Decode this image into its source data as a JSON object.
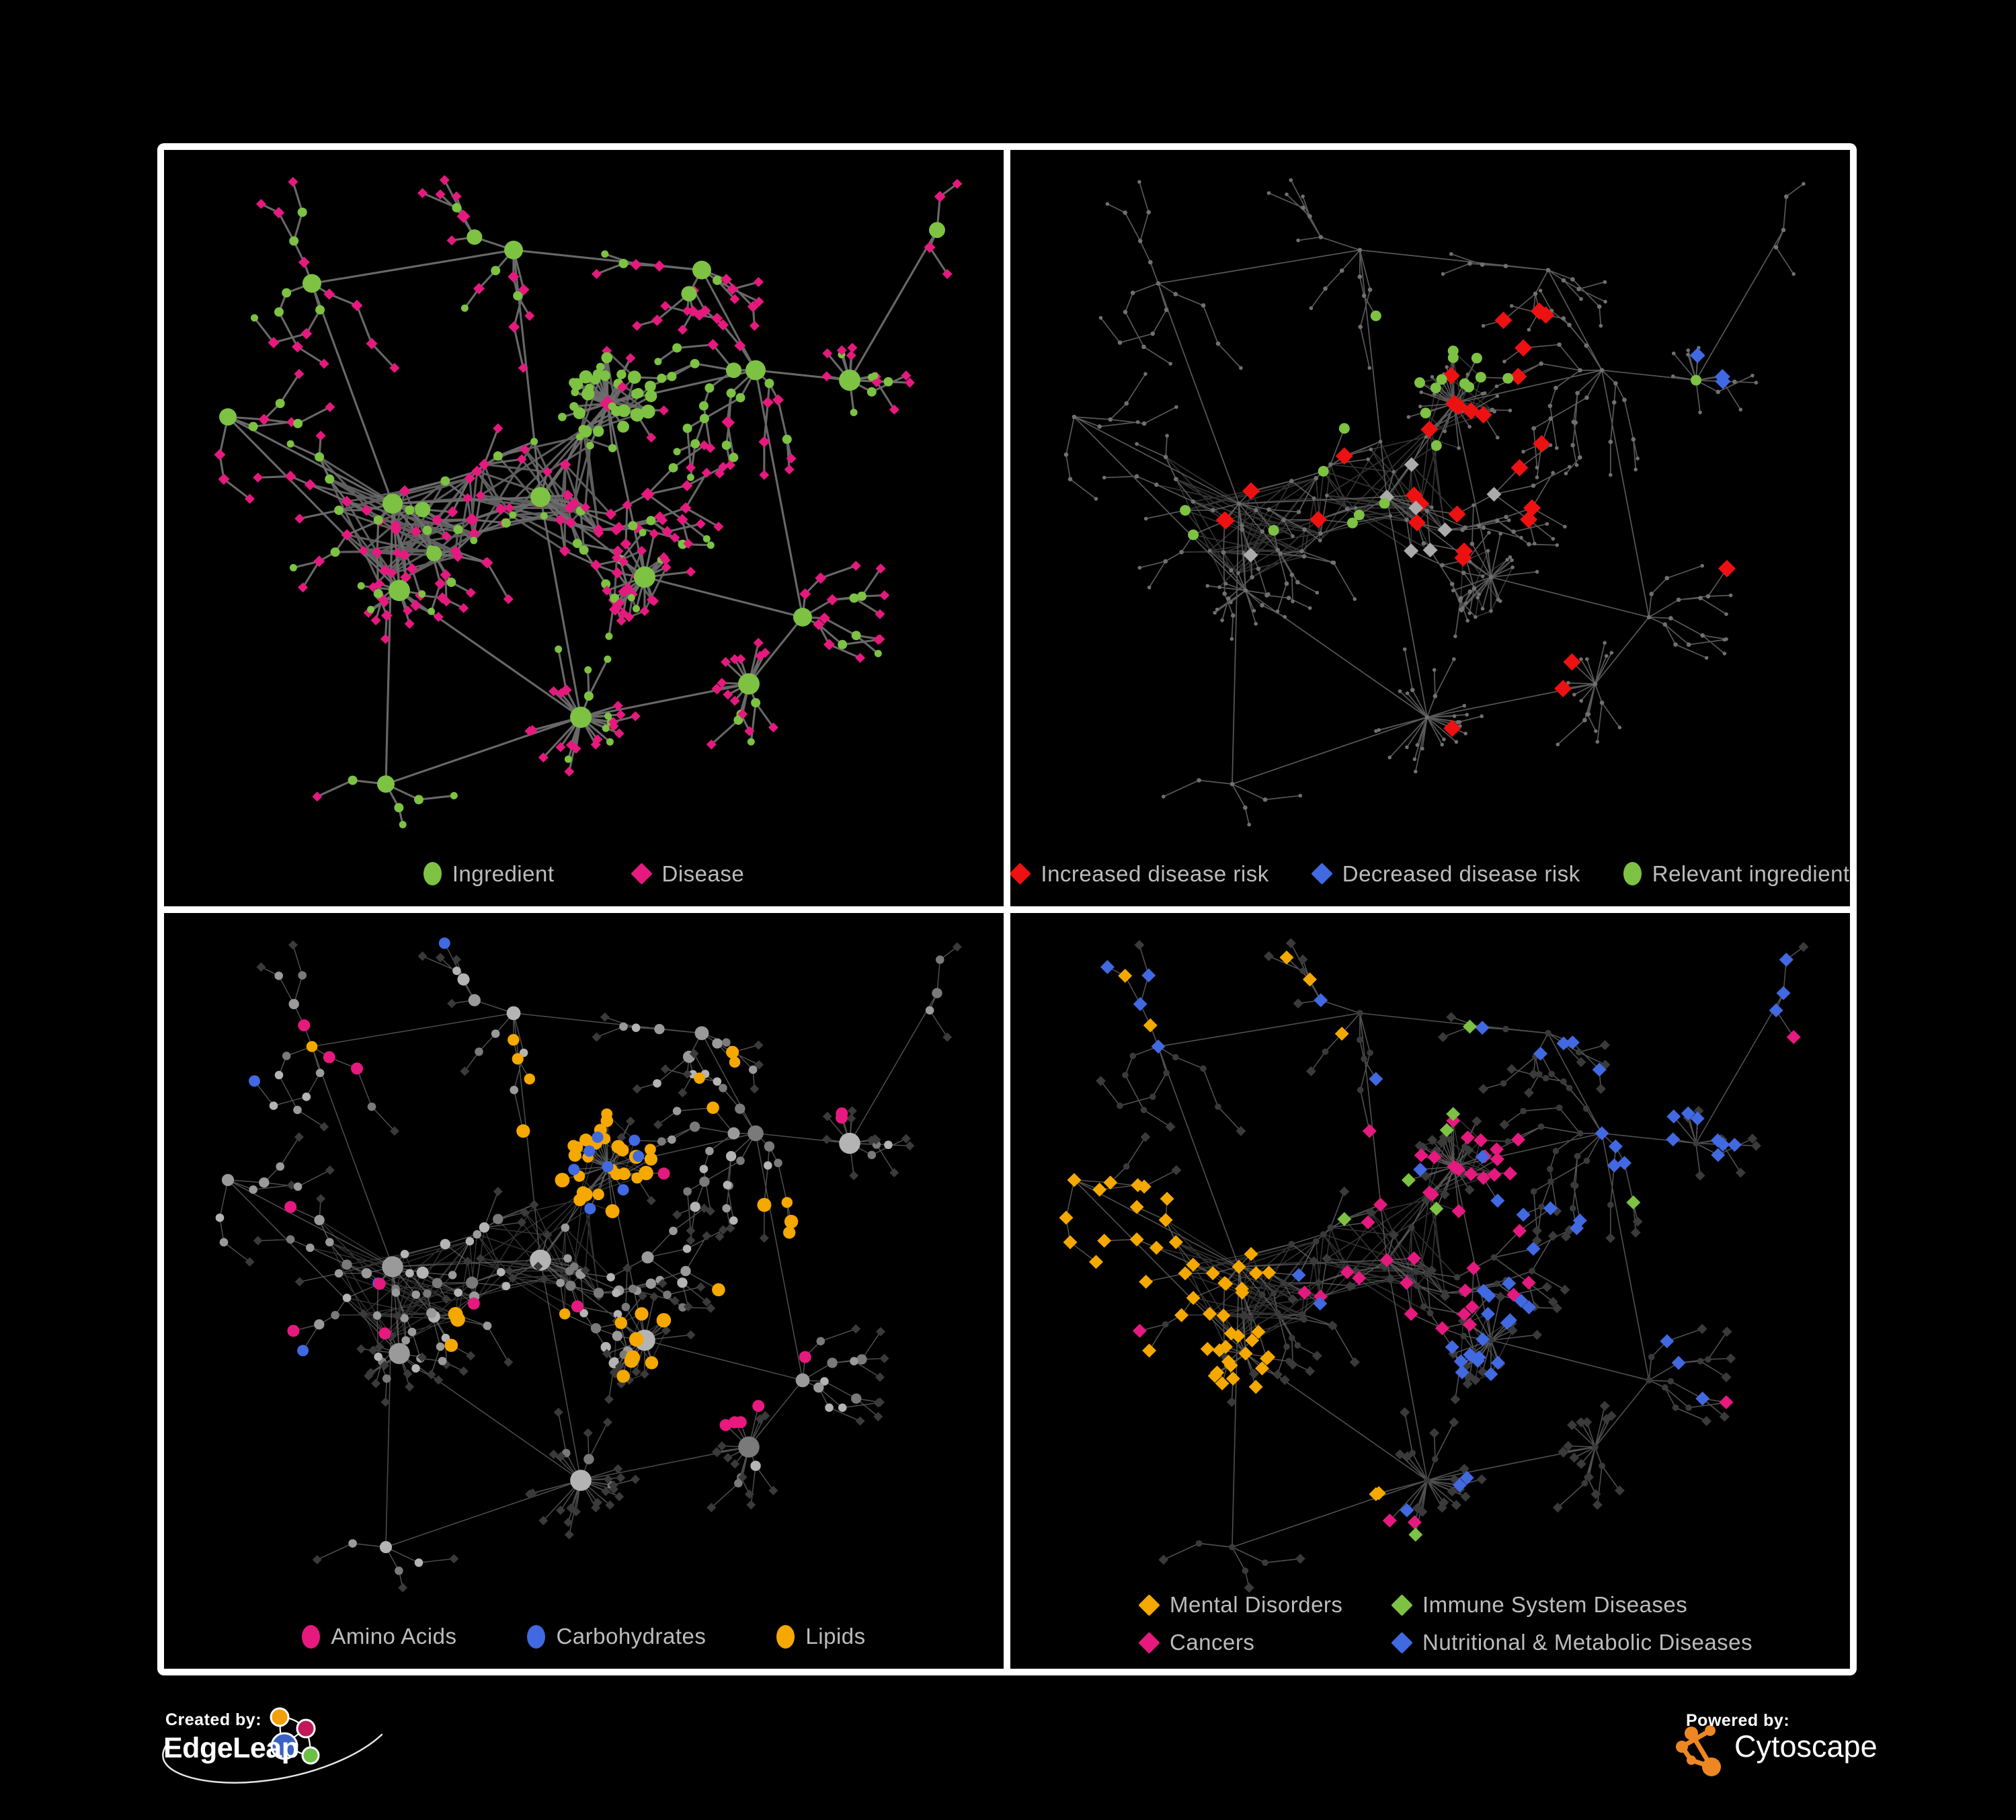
{
  "poster": {
    "background": "#000000"
  },
  "colors": {
    "panel_border": "#ffffff",
    "panel_bg": "#000000",
    "legend_text": "#bcbcbc",
    "green": "#7dc242",
    "pink": "#e6197f",
    "red": "#ee1111",
    "blue": "#4169e1",
    "orange": "#f5a800",
    "silver": "#ababab",
    "gray_circle": "#9a9a9a",
    "gray_circle_light": "#b4b4b4",
    "gray_circle_dark": "#7a7a7a",
    "dark_diamond": "#3a3a3a",
    "tiny_gray": "#707070",
    "edge_strong": "#6e6e6e",
    "edge_thin": "#5d5d5d",
    "edge_soft": "#6f6f6f",
    "edge_mid": "#646464",
    "white": "#ffffff",
    "edgeleap_orange": "#f2a007",
    "edgeleap_pink": "#c2185b",
    "edgeleap_blue": "#3a62c4",
    "edgeleap_green": "#6dbe45",
    "cytoscape_orange": "#ee8722"
  },
  "panels": [
    {
      "id": "ingredient-disease",
      "legend": [
        {
          "label": "Ingredient",
          "shape": "circle",
          "color": "green"
        },
        {
          "label": "Disease",
          "shape": "diamond",
          "color": "pink"
        }
      ]
    },
    {
      "id": "disease-risk",
      "legend": [
        {
          "label": "Increased disease risk",
          "shape": "diamond",
          "color": "red"
        },
        {
          "label": "Decreased disease risk",
          "shape": "diamond",
          "color": "blue"
        },
        {
          "label": "Relevant ingredient",
          "shape": "circle",
          "color": "green"
        }
      ]
    },
    {
      "id": "macronutrient-classes",
      "legend": [
        {
          "label": "Amino Acids",
          "shape": "circle",
          "color": "pink"
        },
        {
          "label": "Carbohydrates",
          "shape": "circle",
          "color": "blue"
        },
        {
          "label": "Lipids",
          "shape": "circle",
          "color": "orange"
        }
      ]
    },
    {
      "id": "disease-categories",
      "legend_columns": 2,
      "legend": [
        {
          "label": "Mental Disorders",
          "shape": "diamond",
          "color": "orange"
        },
        {
          "label": "Immune System Diseases",
          "shape": "diamond",
          "color": "green"
        },
        {
          "label": "Cancers",
          "shape": "diamond",
          "color": "pink"
        },
        {
          "label": "Nutritional & Metabolic Diseases",
          "shape": "diamond",
          "color": "blue"
        }
      ]
    }
  ],
  "footer": {
    "created_by": "Created by:",
    "created_brand": "EdgeLeap",
    "powered_by": "Powered by:",
    "powered_brand": "Cytoscape"
  }
}
